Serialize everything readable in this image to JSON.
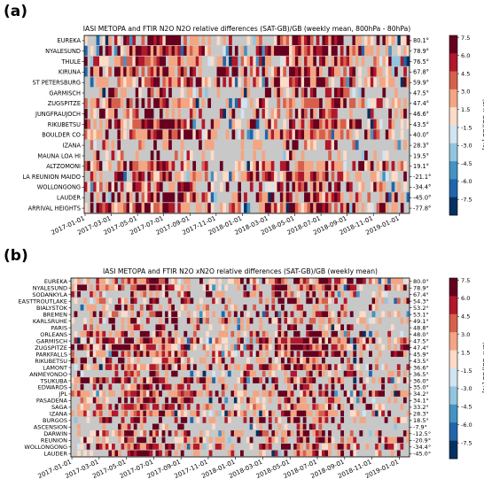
{
  "panels": [
    {
      "panel_label": "(a)",
      "title": "IASI METOPA and FTIR N2O N2O relative differences (SAT-GB)/GB (weekly mean, 800hPa - 80hPa)",
      "stations": [
        "EUREKA",
        "NYALESUND",
        "THULE",
        "KIRUNA",
        "ST PETERSBURG",
        "GARMISCH",
        "ZUGSPITZE",
        "JUNGFRAUJOCH",
        "RIKUBETSU",
        "BOULDER CO",
        "IZANA",
        "MAUNA LOA HI",
        "ALTZOMONI",
        "LA REUNION MAIDO",
        "WOLLONGONG",
        "LAUDER",
        "ARRIVAL HEIGHTS"
      ],
      "latitudes": [
        "80.1°",
        "78.9°",
        "76.5°",
        "67.8°",
        "59.9°",
        "47.5°",
        "47.4°",
        "46.6°",
        "43.5°",
        "40.0°",
        "28.3°",
        "19.5°",
        "19.1°",
        "-21.1°",
        "-34.4°",
        "-45.0°",
        "-77.8°"
      ],
      "x_ticks": [
        "2017-01-01",
        "2017-03-01",
        "2017-05-01",
        "2017-07-01",
        "2017-09-01",
        "2017-11-01",
        "2018-01-01",
        "2018-03-01",
        "2018-05-01",
        "2018-07-01",
        "2018-09-01",
        "2018-11-01",
        "2019-01-01"
      ]
    },
    {
      "panel_label": "(b)",
      "title": "IASI METOPA and FTIR N2O xN2O relative differences (SAT-GB)/GB (weekly mean)",
      "stations": [
        "EUREKA",
        "NYALESUND",
        "SODANKYLA",
        "EASTTROUTLAKE",
        "BIALYSTOK",
        "BREMEN",
        "KARLSRUHE",
        "PARIS",
        "ORLEANS",
        "GARMISCH",
        "ZUGSPITZE",
        "PARKFALLS",
        "RIKUBETSU",
        "LAMONT",
        "ANMEYONDO",
        "TSUKUBA",
        "EDWARDS",
        "JPL",
        "PASADENA",
        "SAGA",
        "IZANA",
        "BURGOS",
        "ASCENSION",
        "DARWIN",
        "REUNION",
        "WOLLONGONG",
        "LAUDER"
      ],
      "latitudes": [
        "80.0°",
        "78.9°",
        "67.4°",
        "54.3°",
        "53.2°",
        "53.1°",
        "49.1°",
        "48.8°",
        "48.0°",
        "47.5°",
        "47.4°",
        "45.9°",
        "43.5°",
        "36.6°",
        "36.5°",
        "36.0°",
        "35.0°",
        "34.2°",
        "34.1°",
        "33.2°",
        "28.3°",
        "18.5°",
        "-7.9°",
        "-12.5°",
        "-20.9°",
        "-34.4°",
        "-45.0°"
      ],
      "x_ticks": [
        "2017-01-01",
        "2017-03-01",
        "2017-05-01",
        "2017-07-01",
        "2017-09-01",
        "2017-11-01",
        "2018-01-01",
        "2018-03-01",
        "2018-05-01",
        "2018-07-01",
        "2018-09-01",
        "2018-11-01",
        "2019-01-01"
      ]
    }
  ],
  "colorbar": {
    "label": "(SAT-GB)/GB [%]",
    "ticks": [
      "7.5",
      "6.0",
      "4.5",
      "3.0",
      "1.5",
      "-1.5",
      "-3.0",
      "-4.5",
      "-6.0",
      "-7.5"
    ],
    "colors": [
      "#67001f",
      "#b2182b",
      "#d6604d",
      "#f4a582",
      "#fddbc7",
      "#d1e5f0",
      "#92c5de",
      "#4393c3",
      "#2166ac",
      "#053061"
    ],
    "missing_color": "#c8c8c8"
  },
  "chart_data": [
    {
      "type": "heatmap",
      "title": "IASI METOPA and FTIR N2O N2O relative differences (SAT-GB)/GB (weekly mean, 800hPa - 80hPa)",
      "rows": [
        "EUREKA",
        "NYALESUND",
        "THULE",
        "KIRUNA",
        "ST PETERSBURG",
        "GARMISCH",
        "ZUGSPITZE",
        "JUNGFRAUJOCH",
        "RIKUBETSU",
        "BOULDER CO",
        "IZANA",
        "MAUNA LOA HI",
        "ALTZOMONI",
        "LA REUNION MAIDO",
        "WOLLONGONG",
        "LAUDER",
        "ARRIVAL HEIGHTS"
      ],
      "x_range": [
        "2017-01-01",
        "2019-01-31"
      ],
      "bin": "weekly",
      "value_range": [
        -7.5,
        7.5
      ],
      "colorbar_label": "(SAT-GB)/GB [%]"
    },
    {
      "type": "heatmap",
      "title": "IASI METOPA and FTIR N2O xN2O relative differences (SAT-GB)/GB (weekly mean)",
      "rows": [
        "EUREKA",
        "NYALESUND",
        "SODANKYLA",
        "EASTTROUTLAKE",
        "BIALYSTOK",
        "BREMEN",
        "KARLSRUHE",
        "PARIS",
        "ORLEANS",
        "GARMISCH",
        "ZUGSPITZE",
        "PARKFALLS",
        "RIKUBETSU",
        "LAMONT",
        "ANMEYONDO",
        "TSUKUBA",
        "EDWARDS",
        "JPL",
        "PASADENA",
        "SAGA",
        "IZANA",
        "BURGOS",
        "ASCENSION",
        "DARWIN",
        "REUNION",
        "WOLLONGONG",
        "LAUDER"
      ],
      "x_range": [
        "2017-01-01",
        "2019-01-31"
      ],
      "bin": "weekly",
      "value_range": [
        -7.5,
        7.5
      ],
      "colorbar_label": "(SAT-GB)/GB [%]"
    }
  ]
}
